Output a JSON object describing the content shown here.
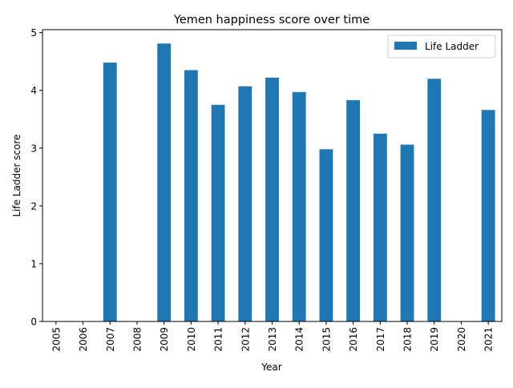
{
  "chart_data": {
    "type": "bar",
    "title": "Yemen happiness score over time",
    "xlabel": "Year",
    "ylabel": "Life Ladder score",
    "categories": [
      "2005",
      "2006",
      "2007",
      "2008",
      "2009",
      "2010",
      "2011",
      "2012",
      "2013",
      "2014",
      "2015",
      "2016",
      "2017",
      "2018",
      "2019",
      "2020",
      "2021"
    ],
    "series": [
      {
        "name": "Life Ladder",
        "color": "#1f77b4",
        "values": [
          null,
          null,
          4.48,
          null,
          4.81,
          4.35,
          3.75,
          4.07,
          4.22,
          3.97,
          2.98,
          3.83,
          3.25,
          3.06,
          4.2,
          null,
          3.66
        ]
      }
    ],
    "ylim": [
      0,
      5.05
    ],
    "yticks": [
      0,
      1,
      2,
      3,
      4,
      5
    ],
    "grid": false,
    "legend_position": "top-right"
  }
}
